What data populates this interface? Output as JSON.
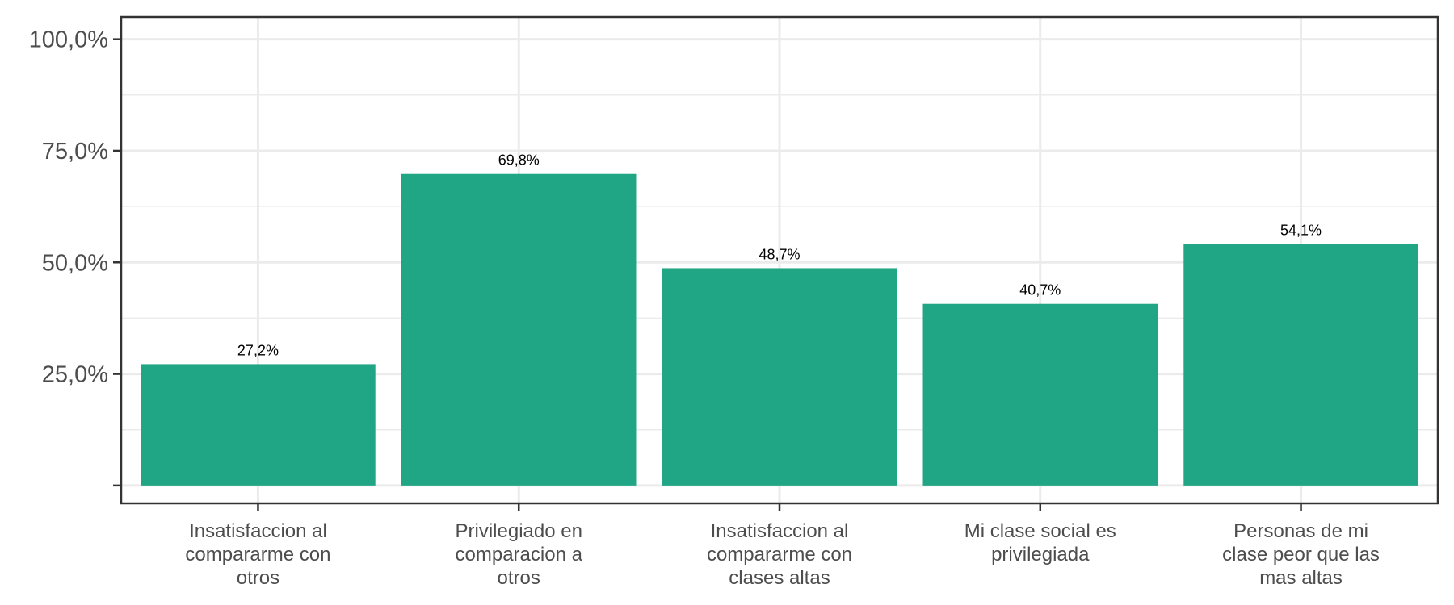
{
  "chart_data": {
    "type": "bar",
    "title": "",
    "xlabel": "",
    "ylabel": "",
    "categories": [
      [
        "Insatisfaccion al",
        "compararme con",
        "otros"
      ],
      [
        "Privilegiado en",
        "comparacion a",
        "otros"
      ],
      [
        "Insatisfaccion al",
        "compararme con",
        "clases altas"
      ],
      [
        "Mi clase social es",
        "privilegiada"
      ],
      [
        "Personas de mi",
        "clase peor que las",
        "mas altas"
      ]
    ],
    "values": [
      27.2,
      69.8,
      48.7,
      40.7,
      54.1
    ],
    "value_labels": [
      "27,2%",
      "69,8%",
      "48,7%",
      "40,7%",
      "54,1%"
    ],
    "ylim": [
      -4,
      105
    ],
    "yticks": [
      0,
      25,
      50,
      75,
      100
    ],
    "ytick_labels": [
      "",
      "25,0%",
      "50,0%",
      "75,0%",
      "100,0%"
    ],
    "y_minor_gridlines": [
      12.5,
      37.5,
      62.5,
      87.5
    ],
    "grid": true,
    "legend": "none",
    "colors": {
      "bar": "#21a685",
      "grid": "#ebebeb",
      "frame": "#333333",
      "background": "#ffffff"
    }
  }
}
